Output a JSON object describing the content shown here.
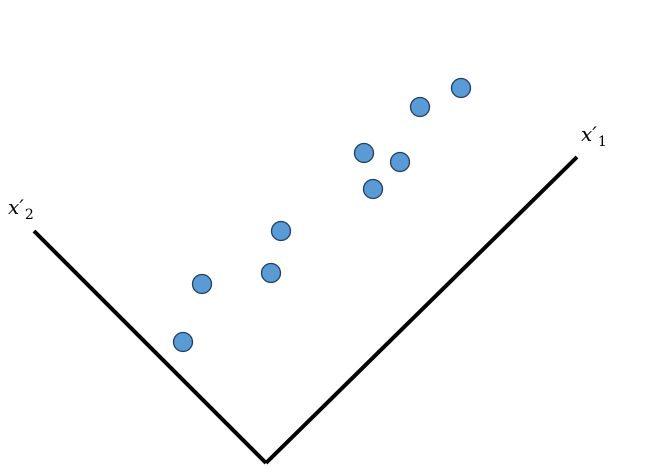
{
  "axes": {
    "x1": {
      "base": "x′",
      "subscript": "1"
    },
    "x2": {
      "base": "x′",
      "subscript": "2"
    }
  },
  "colors": {
    "point_fill": "#5b9bd5",
    "point_stroke": "#1f3f66",
    "axis": "#000000"
  },
  "points": [
    {
      "id": "p1"
    },
    {
      "id": "p2"
    },
    {
      "id": "p3"
    },
    {
      "id": "p4"
    },
    {
      "id": "p5"
    },
    {
      "id": "p6"
    },
    {
      "id": "p7"
    },
    {
      "id": "p8"
    },
    {
      "id": "p9"
    },
    {
      "id": "p10"
    }
  ]
}
